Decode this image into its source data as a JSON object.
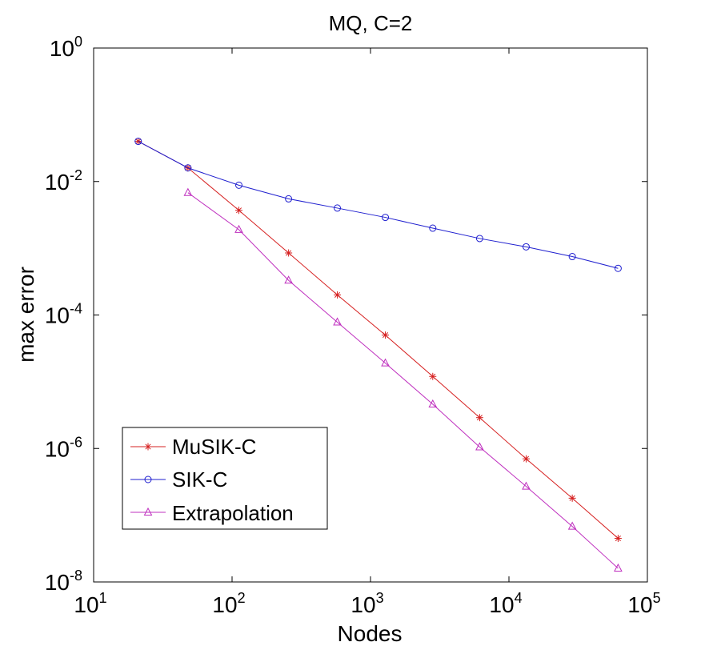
{
  "chart_data": {
    "type": "line",
    "title": "MQ, C=2",
    "xlabel": "Nodes",
    "ylabel": "max error",
    "xscale": "log",
    "yscale": "log",
    "xlim": [
      10,
      100000
    ],
    "ylim": [
      1e-08,
      1
    ],
    "grid": false,
    "legend_position": "bottom-left",
    "x_ticks": [
      {
        "base": "10",
        "exp": "1"
      },
      {
        "base": "10",
        "exp": "2"
      },
      {
        "base": "10",
        "exp": "3"
      },
      {
        "base": "10",
        "exp": "4"
      },
      {
        "base": "10",
        "exp": "5"
      }
    ],
    "y_ticks": [
      {
        "base": "10",
        "exp": "0"
      },
      {
        "base": "10",
        "exp": "-2"
      },
      {
        "base": "10",
        "exp": "-4"
      },
      {
        "base": "10",
        "exp": "-6"
      },
      {
        "base": "10",
        "exp": "-8"
      }
    ],
    "x_tick_values": [
      10,
      100,
      1000,
      10000,
      100000
    ],
    "y_tick_values": [
      1,
      0.01,
      0.0001,
      1e-06,
      1e-08
    ],
    "series": [
      {
        "name": "MuSIK-C",
        "color": "#d62020",
        "marker": "star",
        "x": [
          21,
          48,
          112,
          256,
          576,
          1280,
          2816,
          6144,
          13312,
          28672,
          61440
        ],
        "y": [
          0.04,
          0.016,
          0.0037,
          0.00085,
          0.0002,
          5e-05,
          1.2e-05,
          2.9e-06,
          7e-07,
          1.8e-07,
          4.5e-08
        ]
      },
      {
        "name": "SIK-C",
        "color": "#1f1fcf",
        "marker": "circle",
        "x": [
          21,
          48,
          112,
          256,
          576,
          1280,
          2816,
          6144,
          13312,
          28672,
          61440
        ],
        "y": [
          0.04,
          0.016,
          0.0088,
          0.0055,
          0.004,
          0.0029,
          0.002,
          0.0014,
          0.00105,
          0.00075,
          0.0005
        ]
      },
      {
        "name": "Extrapolation",
        "color": "#bf30bf",
        "marker": "triangle",
        "x": [
          48,
          112,
          256,
          576,
          1280,
          2816,
          6144,
          13312,
          28672,
          61440
        ],
        "y": [
          0.0068,
          0.0019,
          0.00033,
          7.8e-05,
          1.9e-05,
          4.6e-06,
          1.05e-06,
          2.7e-07,
          6.8e-08,
          1.6e-08
        ]
      }
    ]
  }
}
